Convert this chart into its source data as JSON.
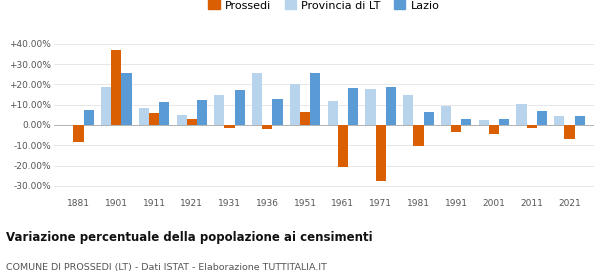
{
  "years": [
    1881,
    1901,
    1911,
    1921,
    1931,
    1936,
    1951,
    1961,
    1971,
    1981,
    1991,
    2001,
    2011,
    2021
  ],
  "prossedi": [
    -8.5,
    37.0,
    6.0,
    3.0,
    -1.5,
    -2.0,
    6.5,
    -20.5,
    -27.5,
    -10.5,
    -3.5,
    -4.5,
    -1.5,
    -7.0
  ],
  "provincia_lt": [
    0.0,
    18.5,
    8.5,
    5.0,
    15.0,
    25.5,
    20.0,
    12.0,
    17.5,
    15.0,
    9.5,
    2.5,
    10.5,
    4.5
  ],
  "lazio": [
    7.5,
    25.5,
    11.5,
    12.5,
    17.0,
    13.0,
    25.5,
    18.0,
    18.5,
    6.5,
    3.0,
    3.0,
    7.0,
    4.5
  ],
  "color_prossedi": "#d95f02",
  "color_provincia": "#b8d4ed",
  "color_lazio": "#5b9bd5",
  "title": "Variazione percentuale della popolazione ai censimenti",
  "subtitle": "COMUNE DI PROSSEDI (LT) - Dati ISTAT - Elaborazione TUTTITALIA.IT",
  "ylim": [
    -35,
    45
  ],
  "yticks": [
    -30,
    -20,
    -10,
    0,
    10,
    20,
    30,
    40
  ],
  "ytick_labels": [
    "-30.00%",
    "-20.00%",
    "-10.00%",
    "0.00%",
    "+10.00%",
    "+20.00%",
    "+30.00%",
    "+40.00%"
  ],
  "legend_labels": [
    "Prossedi",
    "Provincia di LT",
    "Lazio"
  ],
  "bar_width": 0.27
}
